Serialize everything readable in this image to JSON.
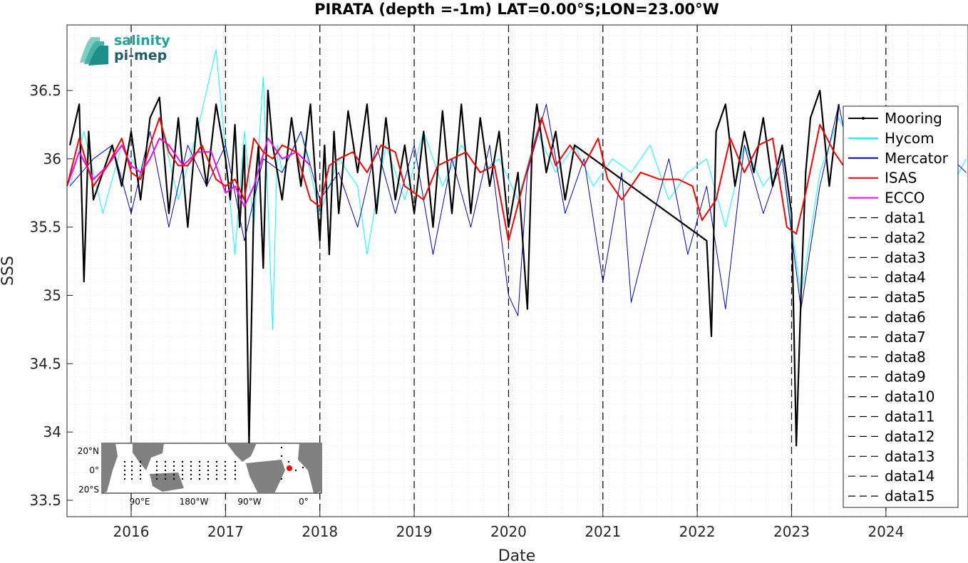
{
  "chart_data": {
    "type": "line",
    "title": "PIRATA (depth =-1m) LAT=0.00°S;LON=23.00°W",
    "xlabel": "Date",
    "ylabel": "SSS",
    "xlim": [
      2015.32,
      2024.87
    ],
    "ylim": [
      33.38,
      36.98
    ],
    "x_ticks": [
      2016,
      2017,
      2018,
      2019,
      2020,
      2021,
      2022,
      2023,
      2024
    ],
    "x_tick_labels": [
      "2016",
      "2017",
      "2018",
      "2019",
      "2020",
      "2021",
      "2022",
      "2023",
      "2024"
    ],
    "y_ticks": [
      33.5,
      34,
      34.5,
      35,
      35.5,
      36,
      36.5
    ],
    "y_tick_labels": [
      "33.5",
      "34",
      "34.5",
      "35",
      "35.5",
      "36",
      "36.5"
    ],
    "grid": "on (dotted)",
    "legend_position": "right",
    "vertical_year_lines": [
      2016,
      2017,
      2018,
      2019,
      2020,
      2021,
      2022,
      2023,
      2024
    ],
    "series": [
      {
        "name": "Mooring",
        "color": "#000000",
        "style": "solid-dots",
        "x": [
          2015.35,
          2015.45,
          2015.5,
          2015.55,
          2015.6,
          2015.7,
          2015.8,
          2015.9,
          2016.0,
          2016.1,
          2016.2,
          2016.3,
          2016.4,
          2016.5,
          2016.6,
          2016.7,
          2016.8,
          2016.9,
          2017.0,
          2017.05,
          2017.1,
          2017.15,
          2017.2,
          2017.25,
          2017.3,
          2017.35,
          2017.4,
          2017.45,
          2017.5,
          2017.6,
          2017.7,
          2017.8,
          2017.9,
          2018.0,
          2018.05,
          2018.1,
          2018.15,
          2018.2,
          2018.3,
          2018.4,
          2018.5,
          2018.6,
          2018.7,
          2018.8,
          2018.9,
          2019.0,
          2019.1,
          2019.2,
          2019.3,
          2019.4,
          2019.5,
          2019.6,
          2019.7,
          2019.8,
          2019.9,
          2020.0,
          2020.1,
          2020.2,
          2020.25,
          2020.3,
          2020.4,
          2020.5,
          2020.6,
          2020.7,
          2022.1,
          2022.15,
          2022.2,
          2022.3,
          2022.4,
          2022.5,
          2022.6,
          2022.7,
          2022.8,
          2022.9,
          2023.0,
          2023.05,
          2023.1,
          2023.15,
          2023.2,
          2023.3,
          2023.4,
          2023.5
        ],
        "y": [
          36.1,
          36.4,
          35.1,
          36.2,
          35.7,
          35.9,
          36.1,
          35.8,
          36.2,
          35.7,
          36.3,
          36.45,
          35.6,
          36.3,
          35.5,
          36.3,
          35.8,
          36.4,
          36.0,
          35.7,
          36.25,
          35.5,
          36.1,
          33.9,
          35.7,
          36.1,
          35.2,
          36.5,
          36.1,
          35.7,
          36.3,
          35.8,
          36.4,
          35.4,
          36.1,
          35.3,
          36.2,
          35.6,
          36.35,
          35.9,
          36.4,
          35.6,
          36.3,
          35.7,
          36.1,
          35.6,
          36.2,
          35.5,
          36.35,
          35.6,
          36.4,
          35.6,
          36.3,
          35.8,
          36.2,
          35.5,
          35.9,
          34.9,
          36.1,
          36.4,
          35.9,
          36.2,
          35.7,
          36.1,
          35.4,
          34.7,
          36.2,
          36.4,
          35.8,
          36.2,
          35.9,
          36.3,
          35.8,
          36.1,
          35.6,
          33.9,
          35.0,
          35.9,
          36.3,
          36.5,
          35.8,
          36.4
        ]
      },
      {
        "name": "Hycom",
        "color": "#00ffff",
        "style": "solid",
        "x": [
          2015.35,
          2015.5,
          2015.7,
          2015.9,
          2016.1,
          2016.3,
          2016.5,
          2016.7,
          2016.9,
          2017.1,
          2017.2,
          2017.3,
          2017.4,
          2017.5,
          2017.55,
          2017.6,
          2017.8,
          2018.0,
          2018.2,
          2018.4,
          2018.5,
          2018.7,
          2018.9,
          2019.1,
          2019.3,
          2019.5,
          2019.7,
          2019.9,
          2020.1,
          2020.3,
          2020.5,
          2020.7,
          2020.9,
          2021.1,
          2021.3,
          2021.5,
          2021.7,
          2021.9,
          2022.1,
          2022.3,
          2022.5,
          2022.7,
          2022.9,
          2023.1,
          2023.3,
          2023.5,
          2023.7,
          2023.9,
          2024.1,
          2024.3,
          2024.5,
          2024.7,
          2024.85
        ],
        "y": [
          35.8,
          36.2,
          35.6,
          36.1,
          35.9,
          36.3,
          35.7,
          36.2,
          36.8,
          35.3,
          36.2,
          35.5,
          36.6,
          34.75,
          36.1,
          35.9,
          36.2,
          35.6,
          36.0,
          35.8,
          35.3,
          36.1,
          35.7,
          36.2,
          35.8,
          36.1,
          35.9,
          36.0,
          35.7,
          36.2,
          35.9,
          36.1,
          35.8,
          36.0,
          35.9,
          36.1,
          35.7,
          35.9,
          36.0,
          35.5,
          36.1,
          35.8,
          36.0,
          35.0,
          35.9,
          36.3,
          36.0,
          35.8,
          36.1,
          35.9,
          36.0,
          35.8,
          36.0
        ]
      },
      {
        "name": "Mercator",
        "color": "#0000cc",
        "style": "solid",
        "x": [
          2015.35,
          2015.6,
          2015.8,
          2016.0,
          2016.2,
          2016.4,
          2016.6,
          2016.8,
          2017.0,
          2017.2,
          2017.4,
          2017.6,
          2017.8,
          2018.0,
          2018.2,
          2018.4,
          2018.6,
          2018.8,
          2019.0,
          2019.2,
          2019.4,
          2019.6,
          2019.8,
          2020.0,
          2020.1,
          2020.2,
          2020.4,
          2020.6,
          2020.8,
          2021.0,
          2021.2,
          2021.3,
          2021.5,
          2021.7,
          2021.9,
          2022.1,
          2022.3,
          2022.5,
          2022.7,
          2022.9,
          2023.1,
          2023.3,
          2023.5,
          2023.7,
          2023.9,
          2024.1,
          2024.3,
          2024.5,
          2024.7,
          2024.85
        ],
        "y": [
          35.8,
          36.0,
          36.1,
          35.6,
          36.2,
          35.5,
          36.1,
          35.8,
          36.1,
          35.4,
          36.0,
          35.9,
          36.2,
          35.7,
          35.9,
          35.5,
          36.1,
          35.6,
          36.1,
          35.3,
          36.0,
          35.5,
          36.1,
          35.0,
          34.85,
          35.9,
          36.4,
          35.6,
          36.0,
          35.1,
          35.9,
          34.95,
          35.5,
          36.0,
          35.3,
          35.8,
          34.9,
          36.1,
          35.6,
          36.0,
          34.9,
          35.8,
          36.4,
          35.7,
          36.0,
          35.8,
          36.1,
          35.7,
          36.0,
          35.9
        ]
      },
      {
        "name": "ISAS",
        "color": "#ff0000",
        "style": "solid",
        "x": [
          2015.32,
          2015.45,
          2015.6,
          2015.75,
          2015.9,
          2016.0,
          2016.1,
          2016.2,
          2016.3,
          2016.4,
          2016.5,
          2016.6,
          2016.75,
          2016.9,
          2017.0,
          2017.1,
          2017.2,
          2017.3,
          2017.4,
          2017.5,
          2017.6,
          2017.75,
          2017.9,
          2018.0,
          2018.1,
          2018.2,
          2018.35,
          2018.5,
          2018.65,
          2018.8,
          2018.9,
          2019.0,
          2019.1,
          2019.25,
          2019.4,
          2019.55,
          2019.7,
          2019.85,
          2020.0,
          2020.15,
          2020.35,
          2020.5,
          2020.65,
          2020.8,
          2020.95,
          2021.05,
          2021.2,
          2021.4,
          2021.6,
          2021.8,
          2021.95,
          2022.05,
          2022.2,
          2022.35,
          2022.5,
          2022.65,
          2022.8,
          2022.95,
          2023.05,
          2023.15,
          2023.3,
          2023.45,
          2023.55
        ],
        "y": [
          35.8,
          36.15,
          35.8,
          35.95,
          36.15,
          35.9,
          35.85,
          36.1,
          36.3,
          36.05,
          35.95,
          35.95,
          36.1,
          35.85,
          35.8,
          35.85,
          35.7,
          36.15,
          36.05,
          36.0,
          36.1,
          36.05,
          35.7,
          35.65,
          35.95,
          36.0,
          36.05,
          35.9,
          36.1,
          36.05,
          35.8,
          35.75,
          35.7,
          35.95,
          36.0,
          36.05,
          35.9,
          35.95,
          35.4,
          35.8,
          36.3,
          35.95,
          36.1,
          35.95,
          36.15,
          35.85,
          35.7,
          35.9,
          35.85,
          35.85,
          35.8,
          35.55,
          35.7,
          36.15,
          35.9,
          36.1,
          36.15,
          35.5,
          35.45,
          35.75,
          36.25,
          36.05,
          35.95
        ]
      },
      {
        "name": "ECCO",
        "color": "#ff00ff",
        "style": "solid",
        "x": [
          2015.32,
          2015.45,
          2015.6,
          2015.75,
          2015.9,
          2016.0,
          2016.1,
          2016.2,
          2016.3,
          2016.4,
          2016.55,
          2016.7,
          2016.85,
          2017.0,
          2017.1,
          2017.2,
          2017.3,
          2017.45,
          2017.6,
          2017.75,
          2017.9
        ],
        "y": [
          35.8,
          36.05,
          35.85,
          35.95,
          36.1,
          35.95,
          35.9,
          36.0,
          36.15,
          36.1,
          35.95,
          36.05,
          36.05,
          35.75,
          35.8,
          35.65,
          35.8,
          36.15,
          36.0,
          36.05,
          35.95
        ]
      }
    ],
    "extra_legend_entries": [
      "data1",
      "data2",
      "data3",
      "data4",
      "data5",
      "data6",
      "data7",
      "data8",
      "data9",
      "data10",
      "data11",
      "data12",
      "data13",
      "data14",
      "data15"
    ]
  },
  "logo": {
    "line1": "salinity",
    "line2": "pi-mep"
  },
  "inset_map": {
    "y_labels": [
      "20°N",
      "0°",
      "20°S"
    ],
    "x_labels": [
      "90°E",
      "180°W",
      "90°W",
      "0°"
    ],
    "marker_color": "#ff0000"
  }
}
